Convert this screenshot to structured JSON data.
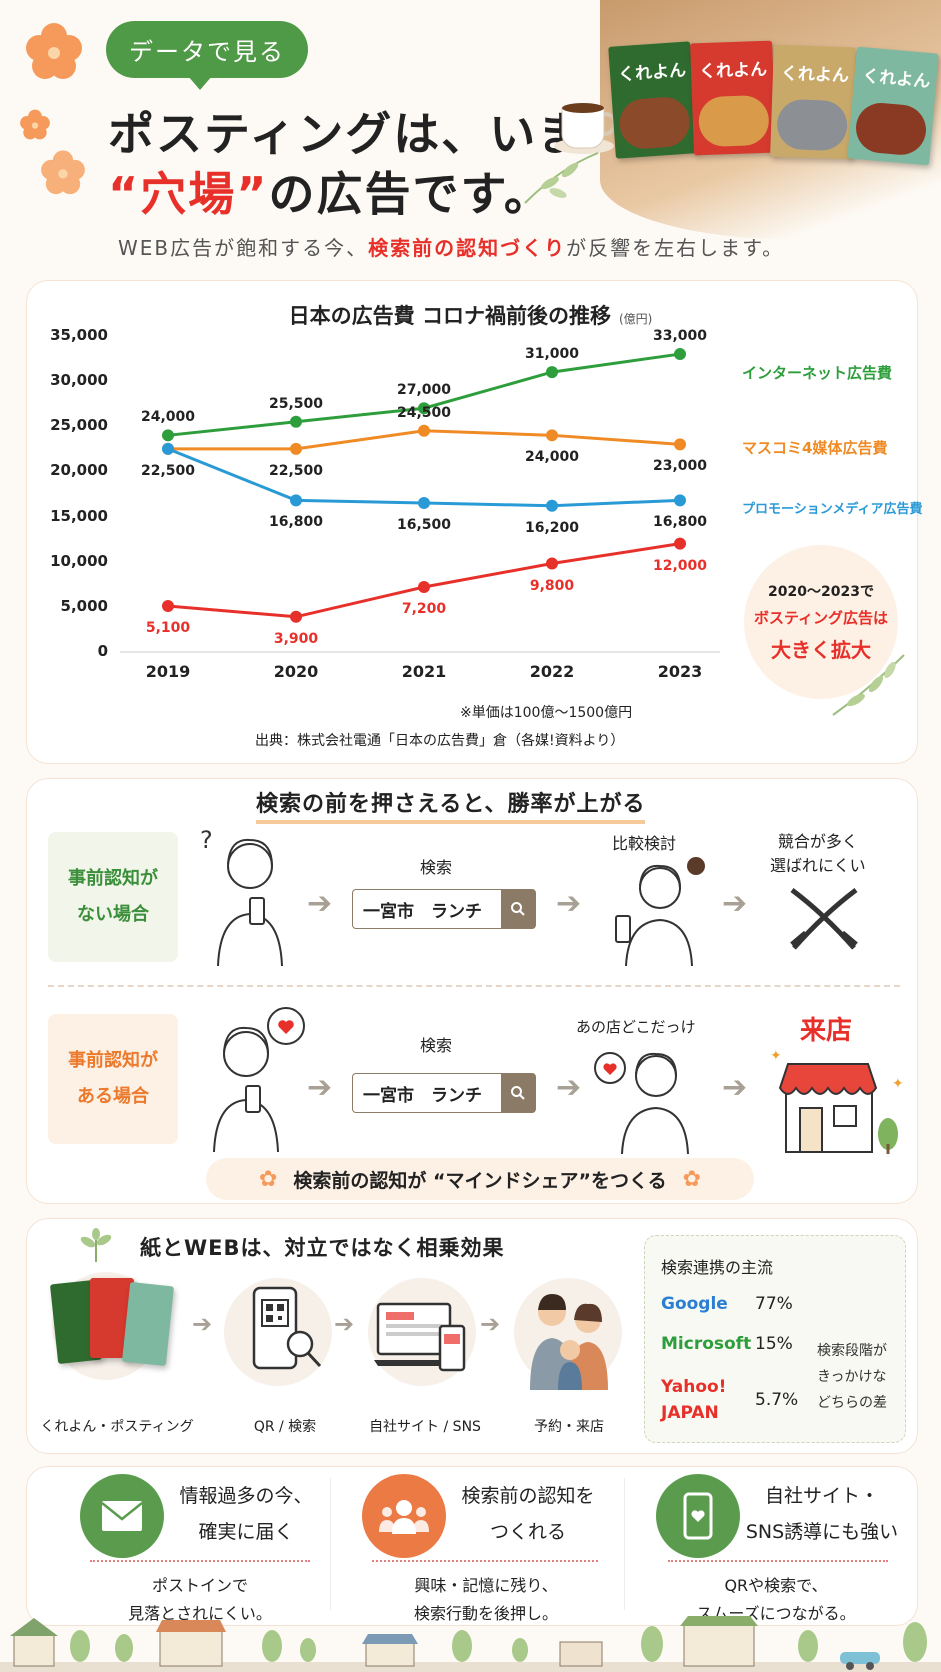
{
  "header": {
    "pill": "データで見る",
    "title_line1": "ポスティングは、いま",
    "title_line2_quote": "“穴場”",
    "title_line2_rest": "の広告です。",
    "subtitle_a": "WEB広告が飽和する今、",
    "subtitle_b": "検索前の認知づくり",
    "subtitle_c": "が反響を左右します。",
    "magazine_title": "くれよん"
  },
  "chart": {
    "title": "日本の広告費 コロナ禍前後の推移",
    "unit": "(億円)",
    "note": "※単価は100億〜1500億円",
    "source": "出典：株式会社電通「日本の広告費」倉（各媒!資料より）",
    "badge_line1": "2020〜2023で",
    "badge_line2": "ボスティング広告は",
    "badge_line3": "大きく拡大"
  },
  "chart_data": {
    "type": "line",
    "title": "日本の広告費 コロナ禍前後の推移",
    "x": [
      "2019",
      "2020",
      "2021",
      "2022",
      "2023"
    ],
    "y_ticks": [
      "35,000",
      "30,000",
      "25,000",
      "20,000",
      "15,000",
      "10,000",
      "5,000",
      "0"
    ],
    "ylim": [
      0,
      35000
    ],
    "legend_placement": "right",
    "series": [
      {
        "name": "インターネット広告費",
        "color": "#2e9e3c",
        "values": [
          24000,
          25500,
          27000,
          31000,
          33000
        ],
        "labels": [
          "24,000",
          "25,500",
          "27,000",
          "31,000",
          "33,000"
        ]
      },
      {
        "name": "マスコミ4媒体広告費",
        "color": "#f08a24",
        "values": [
          22500,
          22500,
          24500,
          24000,
          23000
        ],
        "labels": [
          "",
          "22,500",
          "24,500",
          "24,000",
          "23,000"
        ]
      },
      {
        "name": "プロモーションメディア広告費",
        "color": "#2a9ad6",
        "values": [
          22500,
          16800,
          16500,
          16200,
          16800
        ],
        "labels": [
          "22,500",
          "16,800",
          "16,500",
          "16,200",
          "16,800"
        ]
      },
      {
        "name": "",
        "color": "#e8302a",
        "values": [
          5100,
          3900,
          7200,
          9800,
          12000
        ],
        "labels": [
          "5,100",
          "3,900",
          "7,200",
          "9,800",
          "12,000"
        ]
      }
    ]
  },
  "section2": {
    "title": "検索の前を押さえると、勝率が上がる",
    "case1_line1": "事前認知が",
    "case1_line2": "ない場合",
    "case2_line1": "事前認知が",
    "case2_line2": "ある場合",
    "search_label": "検索",
    "search_value": "一宮市　ランチ",
    "compare": "比較検討",
    "compete_line1": "競合が多く",
    "compete_line2": "選ばれにくい",
    "recall": "あの店どこだっけ",
    "visit": "来店",
    "mindshare": "検索前の認知が “マインドシェア”をつくる",
    "question_mark": "?"
  },
  "section3": {
    "title": "紙とWEBは、対立ではなく相乗効果",
    "flow": [
      "くれよん・ポスティング",
      "QR / 検索",
      "自社サイト / SNS",
      "予約・来店"
    ],
    "share_title": "検索連携の主流",
    "shares": [
      {
        "name": "Google",
        "value": "77%",
        "color": "#2a7fd4"
      },
      {
        "name": "Microsoft",
        "value": "15%",
        "color": "#2e9e3c"
      },
      {
        "name": "Yahoo! JAPAN",
        "value": "5.7%",
        "color": "#e8302a"
      }
    ],
    "share_note": "検索段階が きっかけな どちらの差"
  },
  "benefits": [
    {
      "title_1": "情報過多の今、",
      "title_2": "確実に届く",
      "text_1": "ポストインで",
      "text_2": "見落とされにくい。",
      "color": "#5b9b4e"
    },
    {
      "title_1": "検索前の認知を",
      "title_2": "つくれる",
      "text_1": "興味・記憶に残り、",
      "text_2": "検索行動を後押し。",
      "color": "#ec7a45"
    },
    {
      "title_1": "自社サイト・",
      "title_2": "SNS誘導にも強い",
      "text_1": "QRや検索で、",
      "text_2": "スムーズにつながる。",
      "color": "#5b9b4e"
    }
  ]
}
